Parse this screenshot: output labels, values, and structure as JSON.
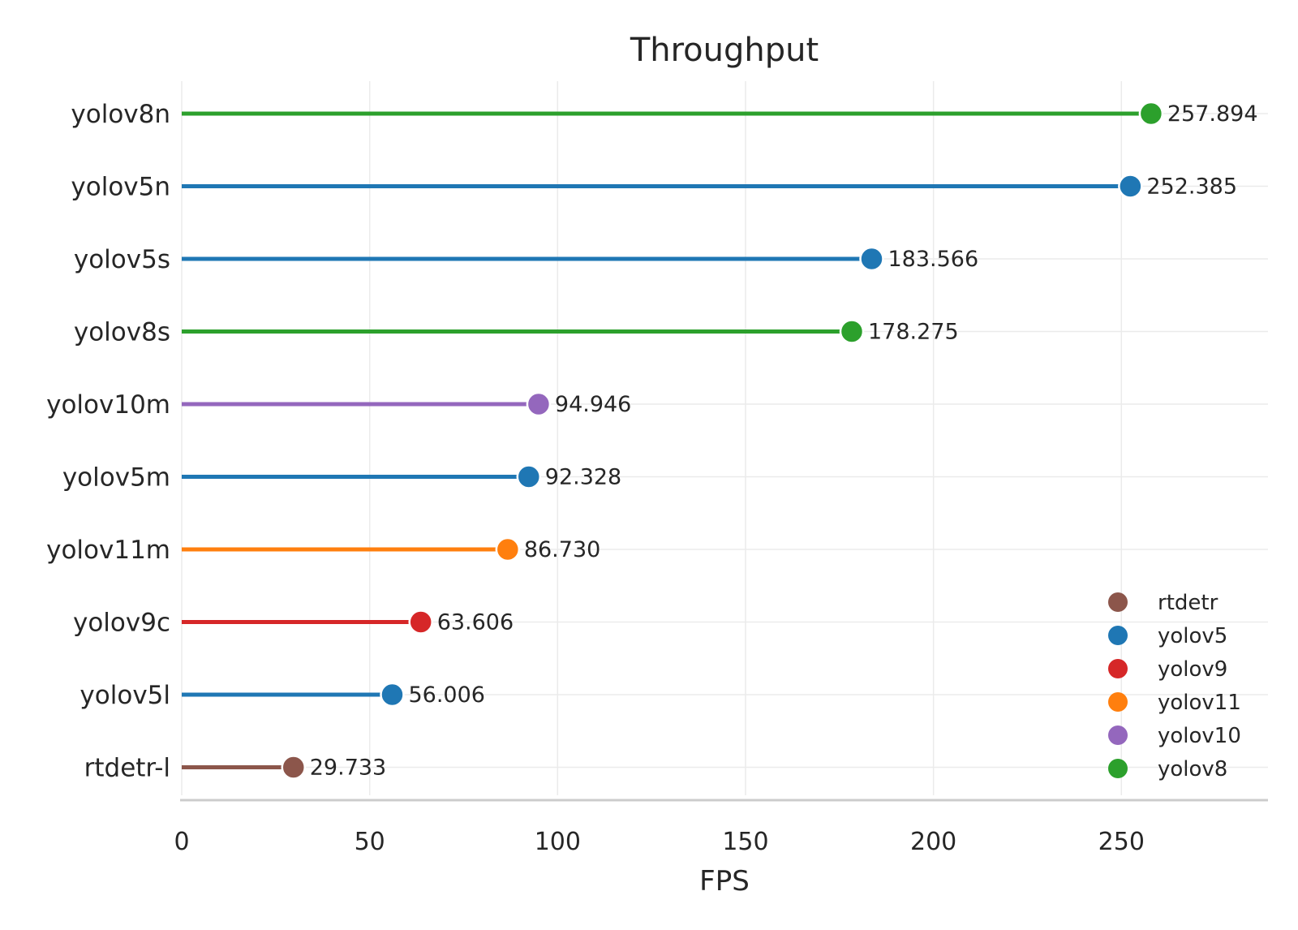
{
  "chart_data": {
    "type": "lollipop",
    "title": "Throughput",
    "xlabel": "FPS",
    "ylabel": "",
    "xlim": [
      0,
      289
    ],
    "xticks": [
      0,
      50,
      100,
      150,
      200,
      250
    ],
    "grid": true,
    "legend_position": "bottom-right",
    "categories": [
      "yolov8n",
      "yolov5n",
      "yolov5s",
      "yolov8s",
      "yolov10m",
      "yolov5m",
      "yolov11m",
      "yolov9c",
      "yolov5l",
      "rtdetr-l"
    ],
    "values": [
      257.894,
      252.385,
      183.566,
      178.275,
      94.946,
      92.328,
      86.73,
      63.606,
      56.006,
      29.733
    ],
    "value_labels": [
      "257.894",
      "252.385",
      "183.566",
      "178.275",
      "94.946",
      "92.328",
      "86.730",
      "63.606",
      "56.006",
      "29.733"
    ],
    "groups": [
      "yolov8",
      "yolov5",
      "yolov5",
      "yolov8",
      "yolov10",
      "yolov5",
      "yolov11",
      "yolov9",
      "yolov5",
      "rtdetr"
    ],
    "legend": [
      {
        "name": "rtdetr",
        "color": "#8c564b"
      },
      {
        "name": "yolov5",
        "color": "#1f77b4"
      },
      {
        "name": "yolov9",
        "color": "#d62728"
      },
      {
        "name": "yolov11",
        "color": "#ff7f0e"
      },
      {
        "name": "yolov10",
        "color": "#9467bd"
      },
      {
        "name": "yolov8",
        "color": "#2ca02c"
      }
    ]
  }
}
